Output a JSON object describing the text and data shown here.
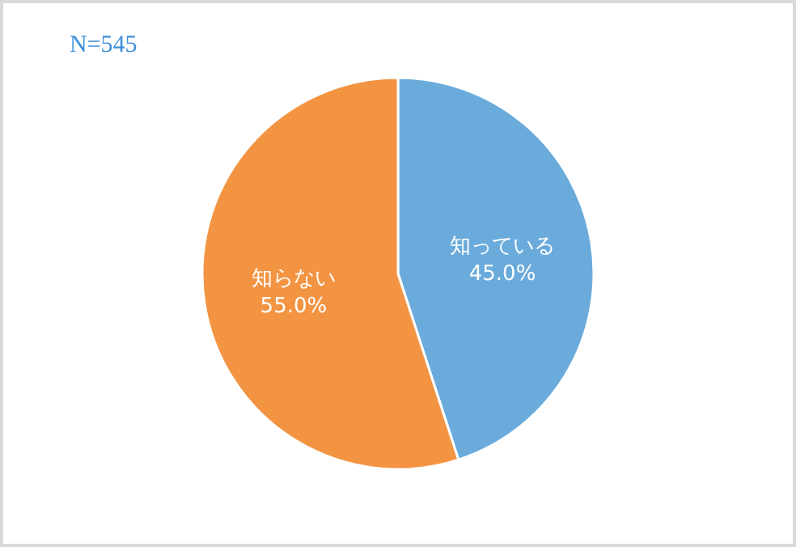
{
  "chart_data": {
    "type": "pie",
    "annotations": [
      "N=545"
    ],
    "categories": [
      "知っている",
      "知らない"
    ],
    "values": [
      45.0,
      55.0
    ],
    "colors": [
      "#6aabdc",
      "#f39443"
    ],
    "value_labels": [
      "45.0%",
      "55.0%"
    ]
  }
}
